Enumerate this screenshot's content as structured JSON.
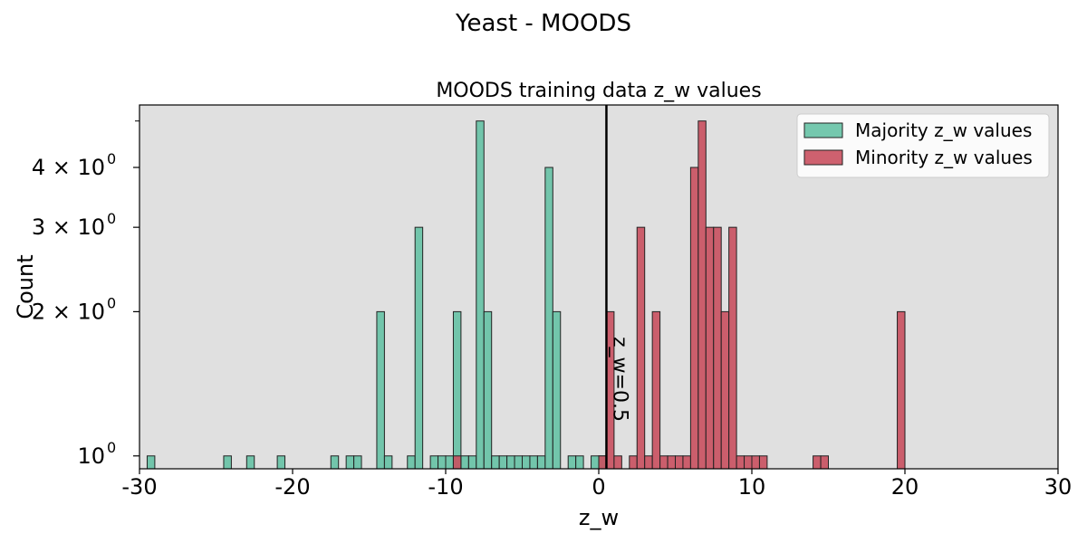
{
  "figure": {
    "suptitle": "Yeast - MOODS"
  },
  "chart_data": {
    "type": "histogram",
    "title": "MOODS training data z_w values",
    "xlabel": "z_w",
    "ylabel": "Count",
    "xlim": [
      -30,
      30
    ],
    "ylim_log": [
      0.94,
      5.4
    ],
    "yscale": "log",
    "bin_width": 0.5,
    "xticks": [
      {
        "value": -30,
        "label": "-30"
      },
      {
        "value": -20,
        "label": "-20"
      },
      {
        "value": -10,
        "label": "-10"
      },
      {
        "value": 0,
        "label": "0"
      },
      {
        "value": 10,
        "label": "10"
      },
      {
        "value": 20,
        "label": "20"
      },
      {
        "value": 30,
        "label": "30"
      }
    ],
    "yticks": [
      {
        "value": 1,
        "base": "10",
        "exp": "0"
      },
      {
        "value": 2,
        "base": "2 × 10",
        "exp": "0"
      },
      {
        "value": 3,
        "base": "3 × 10",
        "exp": "0"
      },
      {
        "value": 4,
        "base": "4 × 10",
        "exp": "0"
      }
    ],
    "minor_yticks": [
      5
    ],
    "legend": {
      "position": "top-right"
    },
    "threshold": {
      "x": 0.5,
      "label": "z_w=0.5"
    },
    "series": [
      {
        "name": "Majority z_w values",
        "color": "#66c2a5",
        "bins": [
          [
            -29.5,
            1
          ],
          [
            -24.5,
            1
          ],
          [
            -23.0,
            1
          ],
          [
            -21.0,
            1
          ],
          [
            -17.5,
            1
          ],
          [
            -16.5,
            1
          ],
          [
            -16.0,
            1
          ],
          [
            -14.5,
            2
          ],
          [
            -14.0,
            1
          ],
          [
            -12.5,
            1
          ],
          [
            -12.0,
            3
          ],
          [
            -11.0,
            1
          ],
          [
            -10.5,
            1
          ],
          [
            -10.0,
            1
          ],
          [
            -9.5,
            2
          ],
          [
            -9.0,
            1
          ],
          [
            -8.5,
            1
          ],
          [
            -8.0,
            5
          ],
          [
            -7.5,
            2
          ],
          [
            -7.0,
            1
          ],
          [
            -6.5,
            1
          ],
          [
            -6.0,
            1
          ],
          [
            -5.5,
            1
          ],
          [
            -5.0,
            1
          ],
          [
            -4.5,
            1
          ],
          [
            -4.0,
            1
          ],
          [
            -3.5,
            4
          ],
          [
            -3.0,
            2
          ],
          [
            -2.0,
            1
          ],
          [
            -1.5,
            1
          ],
          [
            -0.5,
            1
          ],
          [
            0.0,
            1
          ]
        ]
      },
      {
        "name": "Minority z_w values",
        "color": "#c9505f",
        "bins": [
          [
            -9.5,
            1
          ],
          [
            0.0,
            1
          ],
          [
            0.5,
            2
          ],
          [
            1.0,
            1
          ],
          [
            2.0,
            1
          ],
          [
            2.5,
            3
          ],
          [
            3.0,
            1
          ],
          [
            3.5,
            2
          ],
          [
            4.0,
            1
          ],
          [
            4.5,
            1
          ],
          [
            5.0,
            1
          ],
          [
            5.5,
            1
          ],
          [
            6.0,
            4
          ],
          [
            6.5,
            5
          ],
          [
            7.0,
            3
          ],
          [
            7.5,
            3
          ],
          [
            8.0,
            2
          ],
          [
            8.5,
            3
          ],
          [
            9.0,
            1
          ],
          [
            9.5,
            1
          ],
          [
            10.0,
            1
          ],
          [
            10.5,
            1
          ],
          [
            14.0,
            1
          ],
          [
            14.5,
            1
          ],
          [
            19.5,
            2
          ]
        ]
      }
    ]
  }
}
